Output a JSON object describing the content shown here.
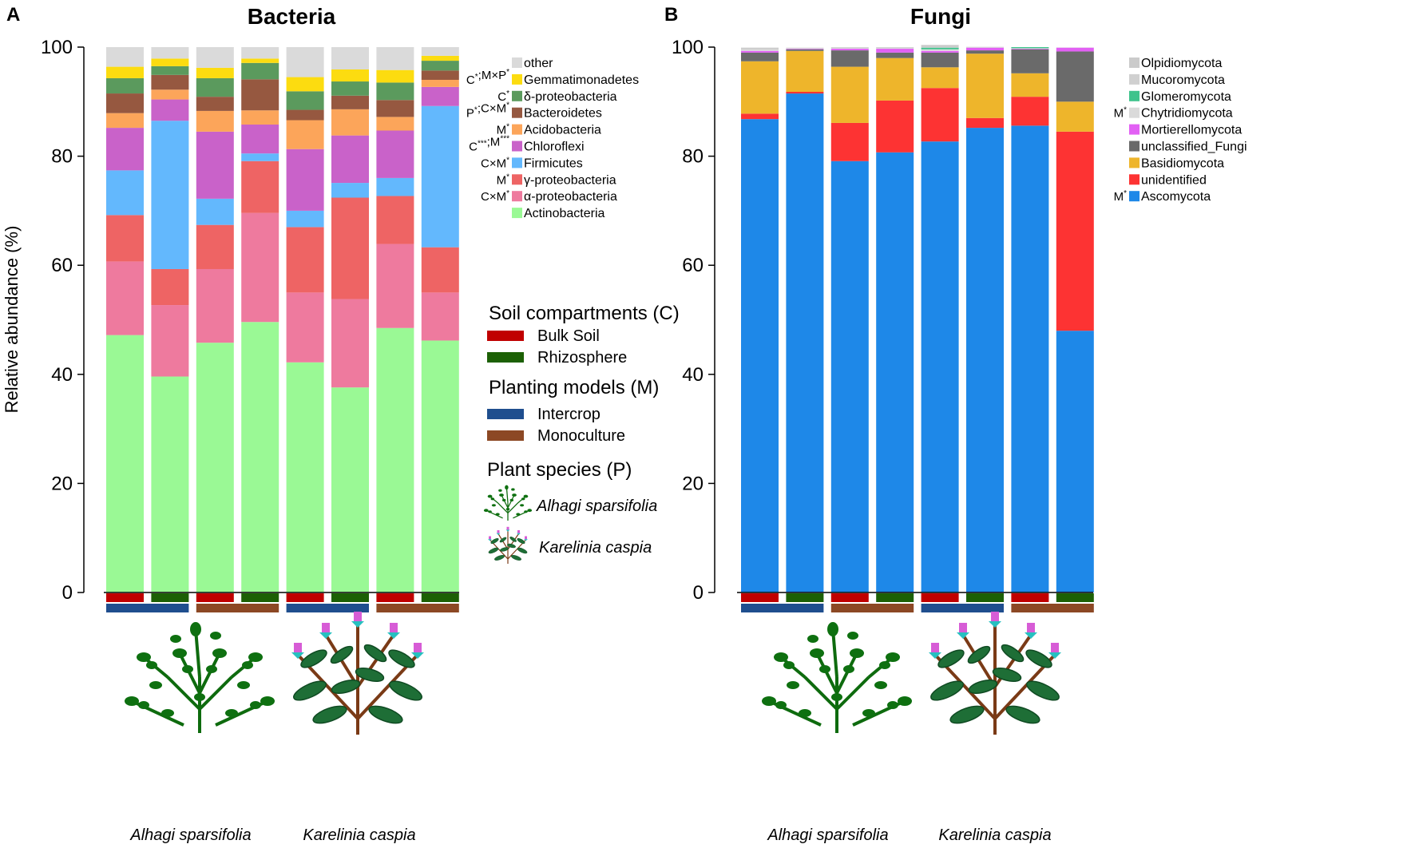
{
  "chart_data": [
    {
      "type": "bar",
      "panel_label": "A",
      "title": "Bacteria",
      "ylabel": "Relative abundance (%)",
      "ylim": [
        0,
        100
      ],
      "yticks": [
        0,
        20,
        40,
        60,
        80,
        100
      ],
      "bars": 8,
      "series": [
        {
          "name": "Actinobacteria",
          "sig": "",
          "color": "#9AF995",
          "values": [
            47.2,
            39.6,
            45.8,
            49.6,
            42.2,
            37.6,
            48.5,
            46.2
          ]
        },
        {
          "name": "α-proteobacteria",
          "sig": "C×M*",
          "color": "#EE7A9E",
          "values": [
            13.5,
            13.1,
            13.5,
            20.0,
            12.8,
            16.2,
            15.4,
            8.8
          ]
        },
        {
          "name": "γ-proteobacteria",
          "sig": "M*",
          "color": "#EE6464",
          "values": [
            8.5,
            6.6,
            8.1,
            9.5,
            12.0,
            18.6,
            8.8,
            8.3
          ]
        },
        {
          "name": "Firmicutes",
          "sig": "C×M*",
          "color": "#63B8FD",
          "values": [
            8.2,
            27.2,
            4.8,
            1.4,
            3.0,
            2.7,
            3.3,
            25.9
          ]
        },
        {
          "name": "Chloroflexi",
          "sig": "C***;M***",
          "color": "#C962C9",
          "values": [
            7.8,
            3.9,
            12.3,
            5.3,
            11.3,
            8.7,
            8.7,
            3.5
          ]
        },
        {
          "name": "Acidobacteria",
          "sig": "M*",
          "color": "#FCA55A",
          "values": [
            2.7,
            1.8,
            3.8,
            2.6,
            5.3,
            4.8,
            2.5,
            1.3
          ]
        },
        {
          "name": "Bacteroidetes",
          "sig": "P*;C×M*",
          "color": "#965840",
          "values": [
            3.6,
            2.7,
            2.6,
            5.7,
            1.9,
            2.5,
            3.1,
            1.7
          ]
        },
        {
          "name": "δ-proteobacteria",
          "sig": "C*",
          "color": "#5B9A5D",
          "values": [
            2.8,
            1.6,
            3.4,
            3.0,
            3.4,
            2.6,
            3.2,
            1.8
          ]
        },
        {
          "name": "Gemmatimonadetes",
          "sig": "C*;M×P*",
          "color": "#FCDC10",
          "values": [
            2.1,
            1.4,
            1.9,
            0.8,
            2.6,
            2.2,
            2.3,
            0.9
          ]
        },
        {
          "name": "other",
          "sig": "",
          "color": "#DADADA",
          "values": [
            3.6,
            2.1,
            3.8,
            2.1,
            5.5,
            4.1,
            4.2,
            1.6
          ]
        }
      ]
    },
    {
      "type": "bar",
      "panel_label": "B",
      "title": "Fungi",
      "ylabel": "",
      "ylim": [
        0,
        100
      ],
      "yticks": [
        0,
        20,
        40,
        60,
        80,
        100
      ],
      "bars": 8,
      "series": [
        {
          "name": "Ascomycota",
          "sig": "M*",
          "color": "#1E88E8",
          "values": [
            86.8,
            91.5,
            79.1,
            80.7,
            82.7,
            85.2,
            85.6,
            48.0
          ]
        },
        {
          "name": "unidentified",
          "sig": "",
          "color": "#FD3333",
          "values": [
            1.0,
            0.3,
            7.0,
            9.5,
            9.8,
            1.8,
            5.3,
            36.5
          ]
        },
        {
          "name": "Basidiomycota",
          "sig": "",
          "color": "#EEB52B",
          "values": [
            9.6,
            7.5,
            10.3,
            7.8,
            3.8,
            11.8,
            4.3,
            5.5
          ]
        },
        {
          "name": "unclassified_Fungi",
          "sig": "",
          "color": "#6A6A6A",
          "values": [
            1.6,
            0.3,
            3.0,
            1.0,
            2.7,
            0.6,
            4.4,
            9.2
          ]
        },
        {
          "name": "Mortierellomycota",
          "sig": "",
          "color": "#E260F4",
          "values": [
            0.3,
            0.1,
            0.3,
            0.7,
            0.3,
            0.5,
            0.1,
            0.7
          ]
        },
        {
          "name": "Chytridiomycota",
          "sig": "M*",
          "color": "#DADADA",
          "values": [
            0.2,
            0.1,
            0.1,
            0.1,
            0.3,
            0.1,
            0.1,
            0.05
          ]
        },
        {
          "name": "Glomeromycota",
          "sig": "",
          "color": "#3EC38C",
          "values": [
            0.0,
            0.0,
            0.0,
            0.0,
            0.3,
            0.0,
            0.2,
            0.0
          ]
        },
        {
          "name": "Mucoromycota",
          "sig": "",
          "color": "#D0D0D0",
          "values": [
            0.2,
            0.1,
            0.1,
            0.1,
            0.1,
            0.05,
            0.0,
            0.0
          ]
        },
        {
          "name": "Olpidiomycota",
          "sig": "",
          "color": "#CBCBCB",
          "values": [
            0.2,
            0.0,
            0.1,
            0.1,
            0.4,
            0.0,
            0.0,
            0.0
          ]
        }
      ]
    }
  ],
  "compartment_code": [
    "bulk",
    "rhizo",
    "bulk",
    "rhizo",
    "bulk",
    "rhizo",
    "bulk",
    "rhizo"
  ],
  "model_code": [
    "intercrop",
    "intercrop",
    "mono",
    "mono",
    "intercrop",
    "intercrop",
    "mono",
    "mono"
  ],
  "center_legend": {
    "compartments_title": "Soil compartments (C)",
    "bulk_label": "Bulk Soil",
    "bulk_color": "#C00000",
    "rhizo_label": "Rhizosphere",
    "rhizo_color": "#1C6005",
    "models_title": "Planting models (M)",
    "intercrop_label": "Intercrop",
    "intercrop_color": "#1F4E8E",
    "mono_label": "Monoculture",
    "mono_color": "#8C4824",
    "species_title": "Plant species (P)",
    "species_1": "Alhagi sparsifolia",
    "species_2": "Karelinia caspia"
  },
  "plant_labels": {
    "a_left": "Alhagi sparsifolia",
    "a_right": "Karelinia caspia",
    "b_left": "Alhagi sparsifolia",
    "b_right": "Karelinia caspia"
  }
}
